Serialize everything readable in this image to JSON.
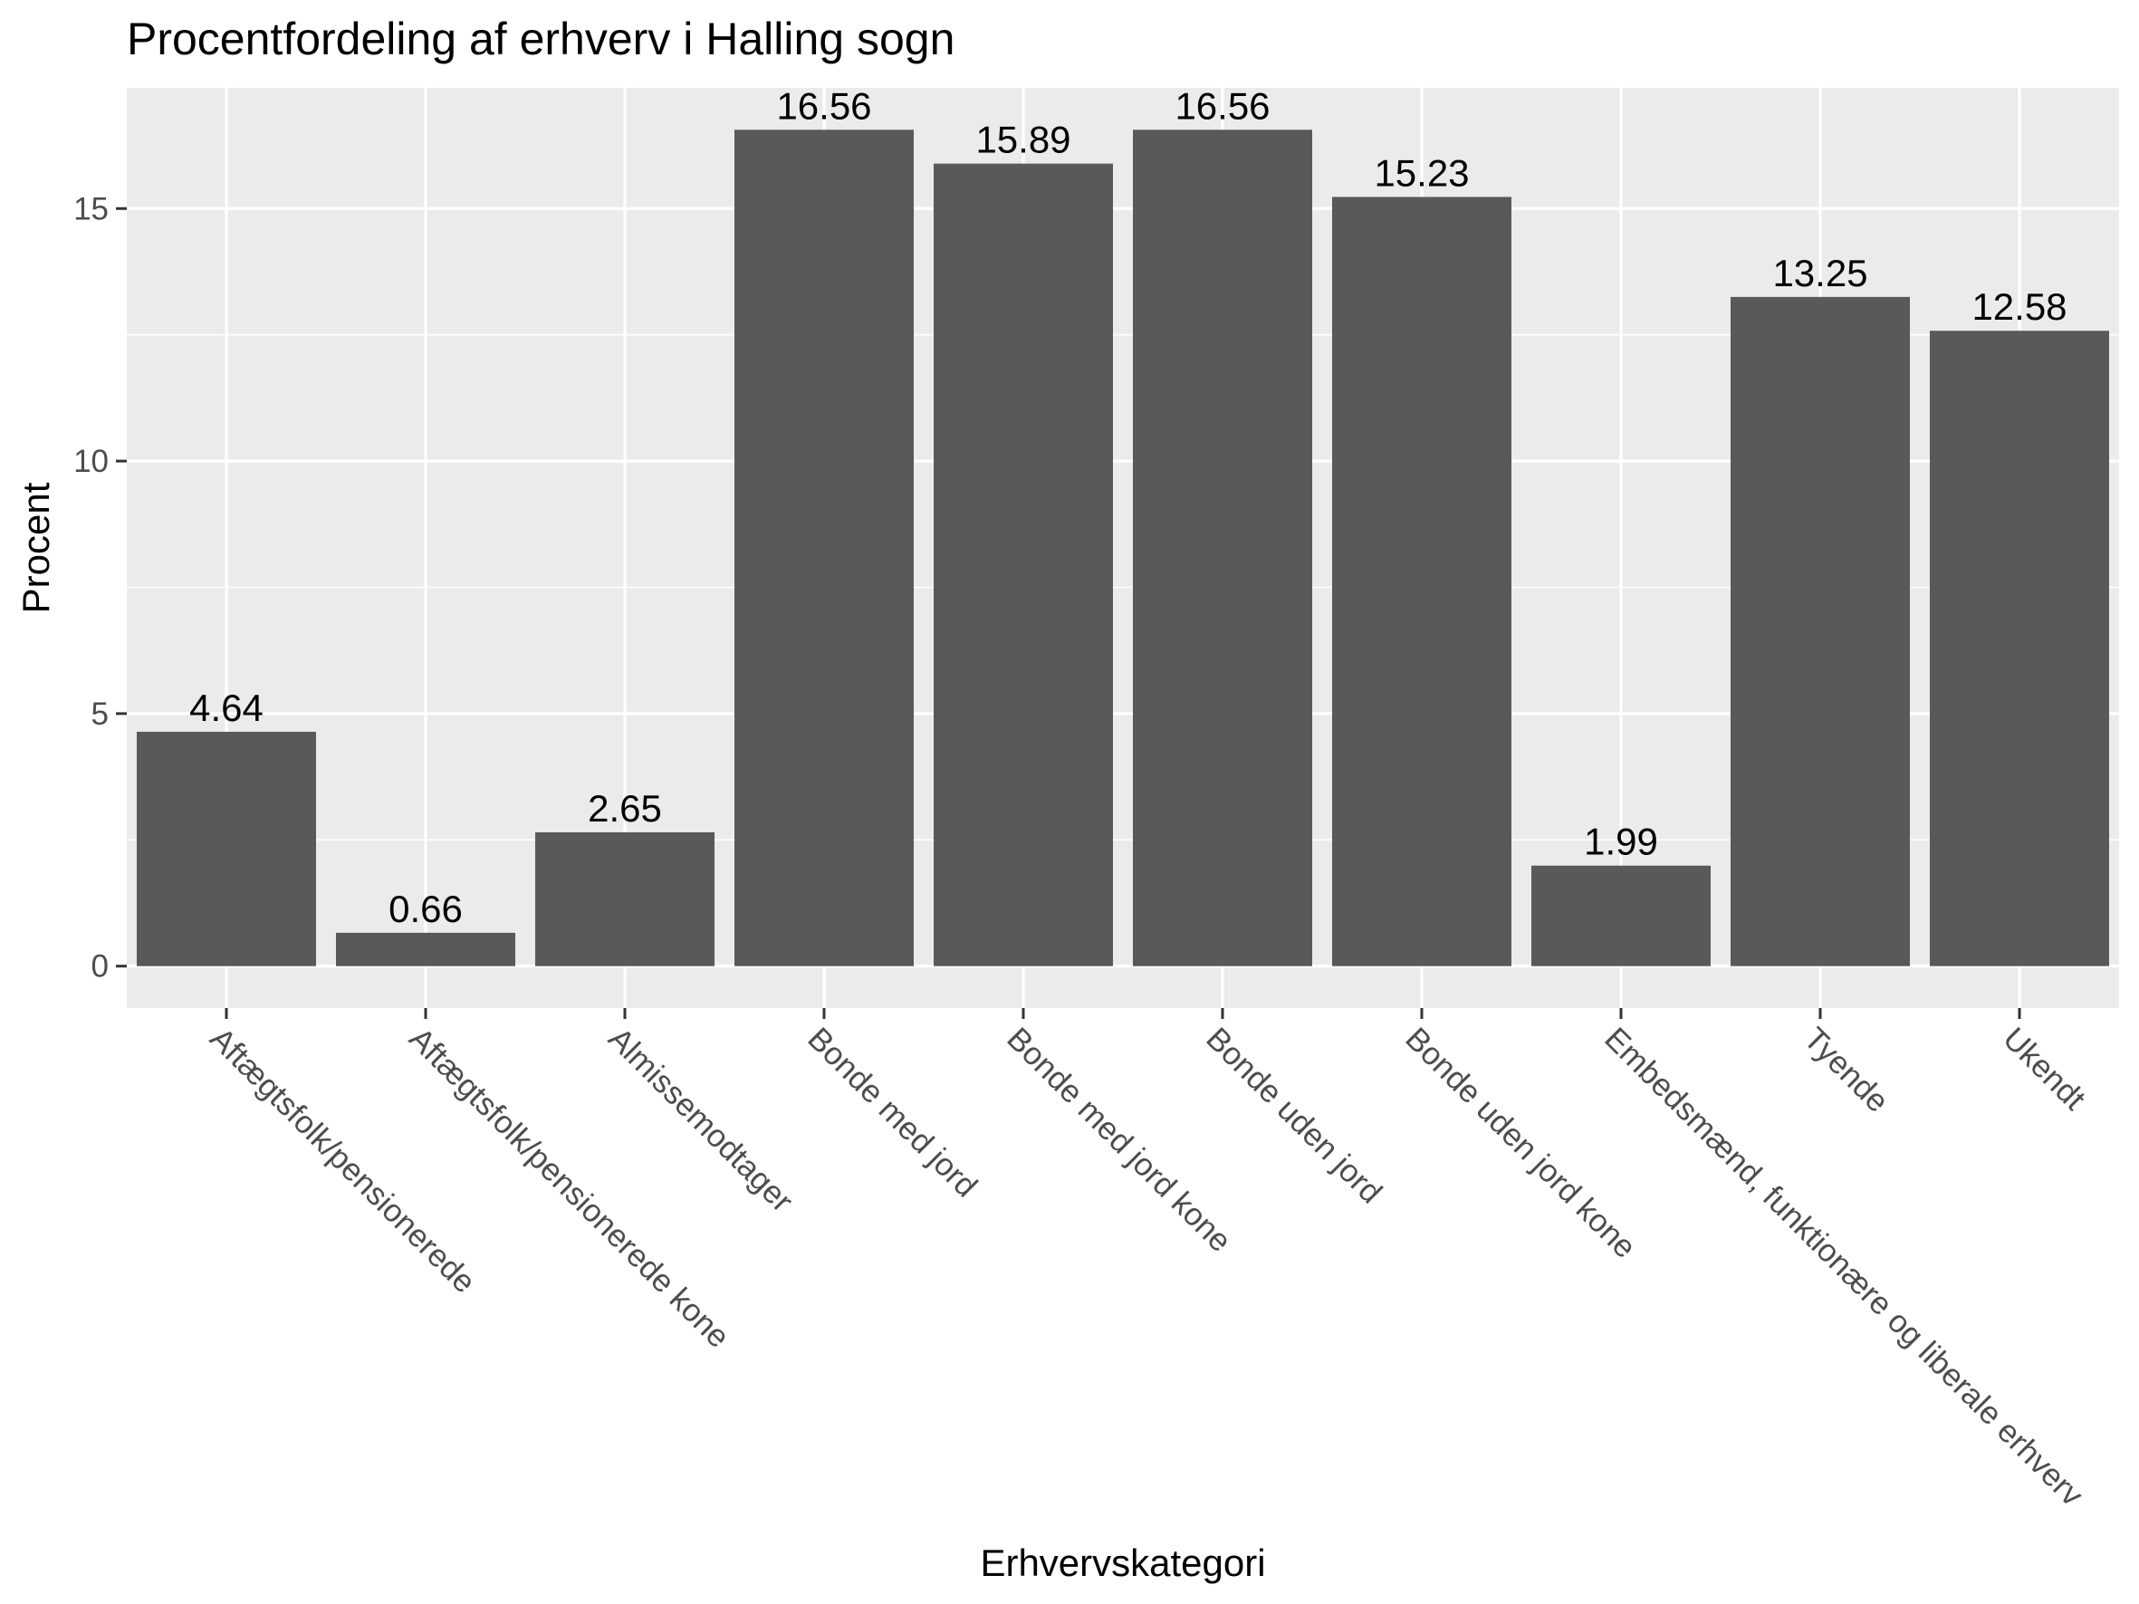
{
  "chart_data": {
    "type": "bar",
    "title": "Procentfordeling af erhverv i Halling sogn",
    "xlabel": "Erhvervskategori",
    "ylabel": "Procent",
    "categories": [
      "Aftægtsfolk/pensionerede",
      "Aftægtsfolk/pensionerede kone",
      "Almissemodtager",
      "Bonde med jord",
      "Bonde med jord kone",
      "Bonde uden jord",
      "Bonde uden jord kone",
      "Embedsmænd, funktionære og liberale erhverv",
      "Tyende",
      "Ukendt"
    ],
    "values": [
      4.64,
      0.66,
      2.65,
      16.56,
      15.89,
      16.56,
      15.23,
      1.99,
      13.25,
      12.58
    ],
    "data_labels": [
      "4.64",
      "0.66",
      "2.65",
      "16.56",
      "15.89",
      "16.56",
      "15.23",
      "1.99",
      "13.25",
      "12.58"
    ],
    "ylim": [
      -0.83,
      17.39
    ],
    "yticks": [
      0,
      5,
      10,
      15
    ],
    "ytick_labels": [
      "0",
      "5",
      "10",
      "15"
    ],
    "grid": true,
    "colors": {
      "bar": "#595959",
      "panel": "#ebebeb",
      "grid": "#ffffff",
      "tick_text": "#4d4d4d"
    }
  }
}
